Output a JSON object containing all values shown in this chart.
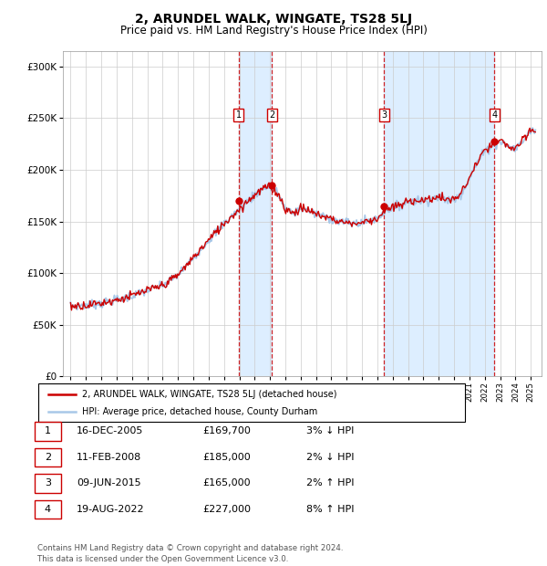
{
  "title": "2, ARUNDEL WALK, WINGATE, TS28 5LJ",
  "subtitle": "Price paid vs. HM Land Registry's House Price Index (HPI)",
  "footer": "Contains HM Land Registry data © Crown copyright and database right 2024.\nThis data is licensed under the Open Government Licence v3.0.",
  "legend_line1": "2, ARUNDEL WALK, WINGATE, TS28 5LJ (detached house)",
  "legend_line2": "HPI: Average price, detached house, County Durham",
  "transactions": [
    {
      "num": 1,
      "label": "16-DEC-2005",
      "price": 169700,
      "pct": "3%",
      "dir": "↓",
      "x_year": 2005.96
    },
    {
      "num": 2,
      "label": "11-FEB-2008",
      "price": 185000,
      "pct": "2%",
      "dir": "↓",
      "x_year": 2008.12
    },
    {
      "num": 3,
      "label": "09-JUN-2015",
      "price": 165000,
      "pct": "2%",
      "dir": "↑",
      "x_year": 2015.44
    },
    {
      "num": 4,
      "label": "19-AUG-2022",
      "price": 227000,
      "pct": "8%",
      "dir": "↑",
      "x_year": 2022.63
    }
  ],
  "hpi_color": "#a8c8e8",
  "price_color": "#cc0000",
  "shade_color": "#ddeeff",
  "grid_color": "#cccccc",
  "background_color": "#ffffff",
  "ylim": [
    0,
    315000
  ],
  "yticks": [
    0,
    50000,
    100000,
    150000,
    200000,
    250000,
    300000
  ],
  "xlim_start": 1994.5,
  "xlim_end": 2025.7,
  "hpi_anchors": [
    [
      1995.0,
      68000
    ],
    [
      1996.0,
      69000
    ],
    [
      1997.0,
      71000
    ],
    [
      1998.0,
      74000
    ],
    [
      1999.0,
      78000
    ],
    [
      2000.0,
      83000
    ],
    [
      2001.0,
      88000
    ],
    [
      2002.0,
      98000
    ],
    [
      2003.0,
      115000
    ],
    [
      2004.0,
      132000
    ],
    [
      2005.0,
      148000
    ],
    [
      2006.0,
      162000
    ],
    [
      2007.0,
      176000
    ],
    [
      2007.8,
      184000
    ],
    [
      2008.5,
      178000
    ],
    [
      2009.0,
      162000
    ],
    [
      2009.5,
      158000
    ],
    [
      2010.0,
      163000
    ],
    [
      2010.5,
      161000
    ],
    [
      2011.0,
      157000
    ],
    [
      2011.5,
      155000
    ],
    [
      2012.0,
      153000
    ],
    [
      2012.5,
      150000
    ],
    [
      2013.0,
      149000
    ],
    [
      2013.5,
      148000
    ],
    [
      2014.0,
      149000
    ],
    [
      2014.5,
      151000
    ],
    [
      2015.0,
      153000
    ],
    [
      2015.5,
      161000
    ],
    [
      2016.0,
      163000
    ],
    [
      2016.5,
      166000
    ],
    [
      2017.0,
      169000
    ],
    [
      2017.5,
      171000
    ],
    [
      2018.0,
      170000
    ],
    [
      2018.5,
      172000
    ],
    [
      2019.0,
      174000
    ],
    [
      2019.5,
      171000
    ],
    [
      2020.0,
      171000
    ],
    [
      2020.5,
      178000
    ],
    [
      2021.0,
      192000
    ],
    [
      2021.5,
      207000
    ],
    [
      2022.0,
      218000
    ],
    [
      2022.5,
      224000
    ],
    [
      2023.0,
      228000
    ],
    [
      2023.5,
      223000
    ],
    [
      2024.0,
      220000
    ],
    [
      2024.5,
      228000
    ],
    [
      2025.0,
      238000
    ]
  ]
}
